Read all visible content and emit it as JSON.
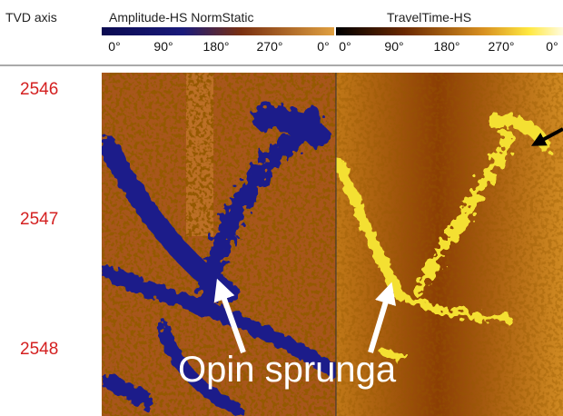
{
  "header": {
    "depth_axis": "TVD axis",
    "tracks": [
      {
        "title": "Amplitude-HS NormStatic",
        "ticks": [
          "0°",
          "90°",
          "180°",
          "270°",
          "0°"
        ]
      },
      {
        "title": "TravelTime-HS",
        "ticks": [
          "0°",
          "90°",
          "180°",
          "270°",
          "0°"
        ]
      }
    ]
  },
  "depths": [
    "2546",
    "2547",
    "2548"
  ],
  "annotation": "Opin sprunga"
}
